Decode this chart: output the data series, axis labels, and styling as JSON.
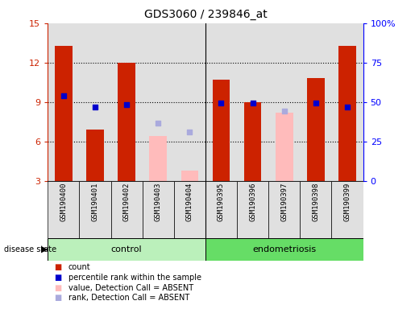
{
  "title": "GDS3060 / 239846_at",
  "samples": [
    "GSM190400",
    "GSM190401",
    "GSM190402",
    "GSM190403",
    "GSM190404",
    "GSM190395",
    "GSM190396",
    "GSM190397",
    "GSM190398",
    "GSM190399"
  ],
  "groups": [
    "control",
    "control",
    "control",
    "control",
    "control",
    "endometriosis",
    "endometriosis",
    "endometriosis",
    "endometriosis",
    "endometriosis"
  ],
  "bar_values_red": [
    13.3,
    6.9,
    12.0,
    null,
    null,
    10.7,
    9.0,
    null,
    10.8,
    13.3
  ],
  "bar_values_pink": [
    null,
    null,
    null,
    6.4,
    3.8,
    null,
    null,
    8.2,
    null,
    null
  ],
  "dot_blue_dark": [
    9.5,
    8.6,
    8.8,
    null,
    null,
    8.9,
    8.9,
    null,
    8.9,
    8.6
  ],
  "dot_blue_light": [
    null,
    null,
    null,
    7.4,
    6.7,
    null,
    null,
    8.3,
    null,
    null
  ],
  "ylim": [
    3,
    15
  ],
  "yticks_left": [
    3,
    6,
    9,
    12,
    15
  ],
  "yticks_right_pos": [
    3,
    6,
    9,
    12,
    15
  ],
  "yticks_right_labels": [
    "0",
    "25",
    "50",
    "75",
    "100%"
  ],
  "grid_lines": [
    6,
    9,
    12
  ],
  "red_color": "#cc2200",
  "pink_color": "#ffbbbb",
  "blue_dark": "#0000cc",
  "blue_light": "#aaaadd",
  "bg_color": "#e0e0e0",
  "bar_width": 0.55,
  "control_bg": "#bbf0bb",
  "endo_bg": "#66dd66",
  "disease_state_label": "disease state",
  "legend_labels": [
    "count",
    "percentile rank within the sample",
    "value, Detection Call = ABSENT",
    "rank, Detection Call = ABSENT"
  ]
}
